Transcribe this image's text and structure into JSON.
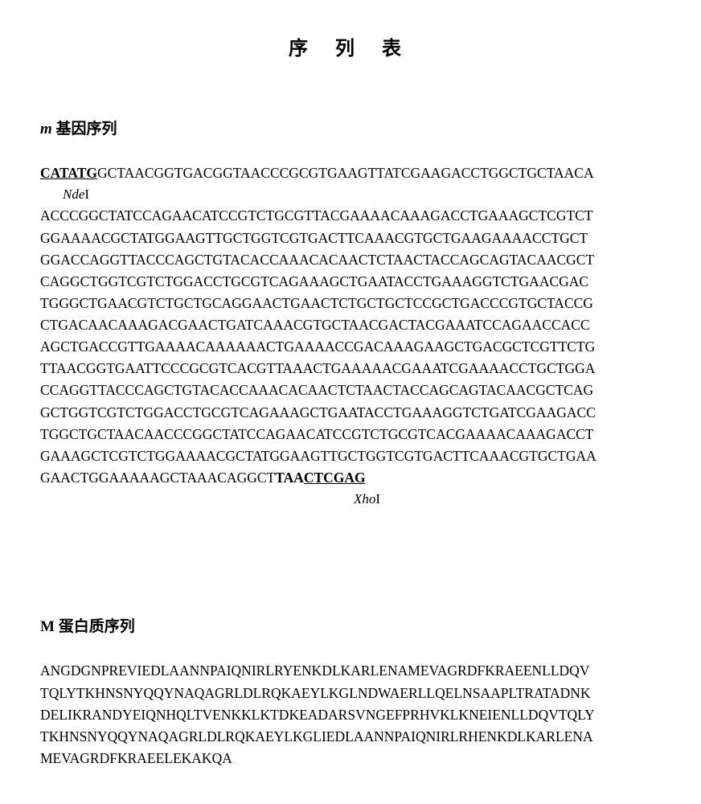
{
  "title": "序 列 表",
  "gene_section": {
    "heading_italic": "m",
    "heading_rest": " 基因序列",
    "site5_seq": "CATATG",
    "site5_label_italic": "Nde",
    "site5_label_roman": "I",
    "line1_rest": "GCTAACGGTGACGGTAACCCGCGTGAAGTTATCGAAGACCTGGCTGCTAACA",
    "line2": "ACCCGGCTATCCAGAACATCCGTCTGCGTTACGAAAACAAAGACCTGAAAGCTCGTCT",
    "line3": "GGAAAACGCTATGGAAGTTGCTGGTCGTGACTTCAAACGTGCTGAAGAAAACCTGCT",
    "line4": "GGACCAGGTTACCCAGCTGTACACCAAACACAACTCTAACTACCAGCAGTACAACGCT",
    "line5": "CAGGCTGGTCGTCTGGACCTGCGTCAGAAAGCTGAATACCTGAAAGGTCTGAACGAC",
    "line6": "TGGGCTGAACGTCTGCTGCAGGAACTGAACTCTGCTGCTCCGCTGACCCGTGCTACCG",
    "line7": "CTGACAACAAAGACGAACTGATCAAACGTGCTAACGACTACGAAATCCAGAACCACC",
    "line8": "AGCTGACCGTTGAAAACAAAAAACTGAAAACCGACAAAGAAGCTGACGCTCGTTCTG",
    "line9": "TTAACGGTGAATTCCCGCGTCACGTTAAACTGAAAAACGAAATCGAAAACCTGCTGGA",
    "line10": "CCAGGTTACCCAGCTGTACACCAAACACAACTCTAACTACCAGCAGTACAACGCTCAG",
    "line11": "GCTGGTCGTCTGGACCTGCGTCAGAAAGCTGAATACCTGAAAGGTCTGATCGAAGACC",
    "line12": "TGGCTGCTAACAACCCGGCTATCCAGAACATCCGTCTGCGTCACGAAAACAAAGACCT",
    "line13": "GAAAGCTCGTCTGGAAAACGCTATGGAAGTTGCTGGTCGTGACTTCAAACGTGCTGAA",
    "line14_main": "GAACTGGAAAAAGCTAAACAGGCT",
    "line14_stop": "TAA",
    "site3_seq": "CTCGAG",
    "site3_label_italic": "Xho",
    "site3_label_roman": "I"
  },
  "protein_section": {
    "heading_prefix": "M",
    "heading_rest": " 蛋白质序列",
    "line1": "ANGDGNPREVIEDLAANNPAIQNIRLRYENKDLKARLENAMEVAGRDFKRAEENLLDQV",
    "line2": "TQLYTKHNSNYQQYNAQAGRLDLRQKAEYLKGLNDWAERLLQELNSAAPLTRATADNK",
    "line3": "DELIKRANDYEIQNHQLTVENKKLKTDKEADARSVNGEFPRHVKLKNEIENLLDQVTQLY",
    "line4": "TKHNSNYQQYNAQAGRLDLRQKAEYLKGLIEDLAANNPAIQNIRLRHENKDLKARLENA",
    "line5": "MEVAGRDFKRAEELEKAKQA"
  }
}
